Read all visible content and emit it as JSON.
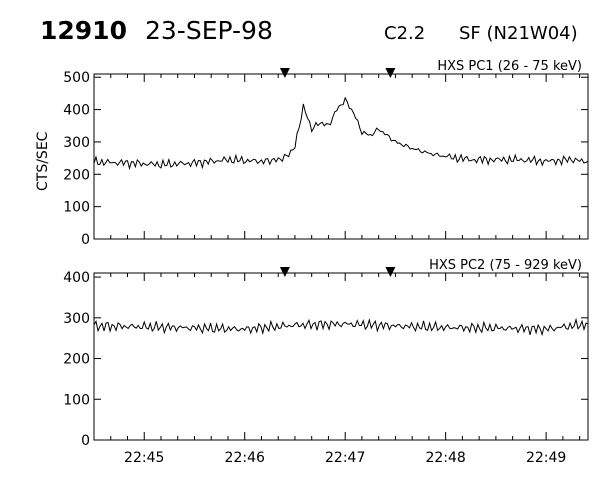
{
  "header": {
    "event_id": "12910",
    "date": "23-SEP-98",
    "goes_class": "C2.2",
    "location": "SF (N21W04)"
  },
  "chart_data": [
    {
      "type": "line",
      "title": "HXS PC1 (26 - 75 keV)",
      "ylabel": "CTS/SEC",
      "xlabel": "",
      "xlim": [
        "22:44:30",
        "22:49:25"
      ],
      "ylim": [
        0,
        510
      ],
      "yticks": [
        0,
        100,
        200,
        300,
        400,
        500
      ],
      "ytick_labels": [
        "0",
        "100",
        "200",
        "300",
        "400",
        "500"
      ],
      "x_ticks": [
        "22:45",
        "22:46",
        "22:47",
        "22:48",
        "22:49"
      ],
      "markers": [
        "22:46:24",
        "22:47:27"
      ],
      "series": [
        {
          "name": "HXS PC1 (26 - 75 keV)",
          "x": [
            "22:44:30",
            "22:44:50",
            "22:45:10",
            "22:45:30",
            "22:45:50",
            "22:46:10",
            "22:46:20",
            "22:46:25",
            "22:46:30",
            "22:46:35",
            "22:46:40",
            "22:46:45",
            "22:46:50",
            "22:46:55",
            "22:47:00",
            "22:47:05",
            "22:47:10",
            "22:47:15",
            "22:47:20",
            "22:47:25",
            "22:47:30",
            "22:47:40",
            "22:47:50",
            "22:48:00",
            "22:48:15",
            "22:48:30",
            "22:48:45",
            "22:49:00",
            "22:49:15",
            "22:49:25"
          ],
          "values": [
            238,
            235,
            230,
            235,
            245,
            240,
            245,
            255,
            285,
            410,
            340,
            360,
            350,
            400,
            430,
            390,
            330,
            320,
            340,
            320,
            300,
            280,
            265,
            255,
            245,
            245,
            245,
            240,
            245,
            240
          ]
        }
      ]
    },
    {
      "type": "line",
      "title": "HXS PC2 (75 - 929 keV)",
      "ylabel": "",
      "xlabel": "",
      "xlim": [
        "22:44:30",
        "22:49:25"
      ],
      "ylim": [
        0,
        410
      ],
      "yticks": [
        0,
        100,
        200,
        300,
        400
      ],
      "ytick_labels": [
        "0",
        "100",
        "200",
        "300",
        "400"
      ],
      "x_ticks": [
        "22:45",
        "22:46",
        "22:47",
        "22:48",
        "22:49"
      ],
      "markers": [
        "22:46:24",
        "22:47:27"
      ],
      "series": [
        {
          "name": "HXS PC2 (75 - 929 keV)",
          "x": [
            "22:44:30",
            "22:45:00",
            "22:45:30",
            "22:46:00",
            "22:46:30",
            "22:47:00",
            "22:47:30",
            "22:48:00",
            "22:48:30",
            "22:49:00",
            "22:49:25"
          ],
          "values": [
            280,
            278,
            275,
            272,
            282,
            285,
            280,
            276,
            275,
            272,
            285
          ]
        }
      ]
    }
  ]
}
